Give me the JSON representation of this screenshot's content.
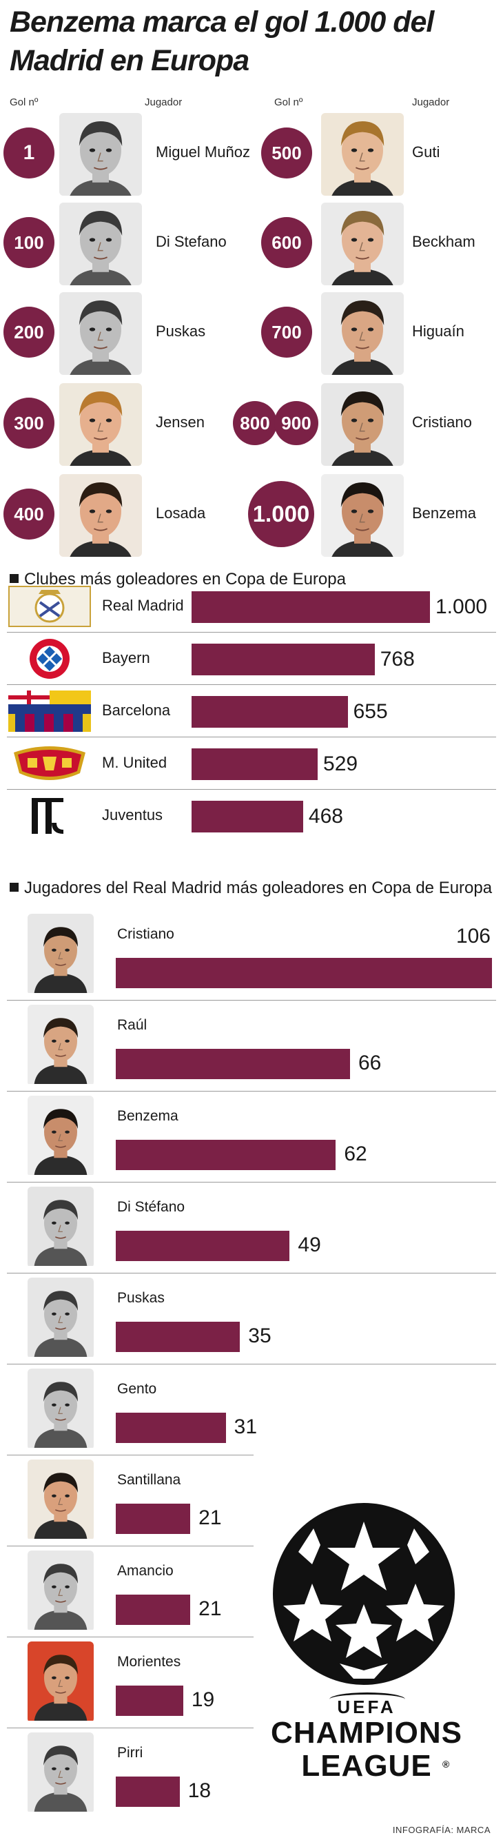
{
  "title": "Benzema marca el gol 1.000 del Madrid en Europa",
  "goals_header": {
    "gol_label": "Gol nº",
    "jugador_label": "Jugador"
  },
  "milestones_left": [
    {
      "goal": "1",
      "player": "Miguel Muñoz"
    },
    {
      "goal": "100",
      "player": "Di Stefano"
    },
    {
      "goal": "200",
      "player": "Puskas"
    },
    {
      "goal": "300",
      "player": "Jensen"
    },
    {
      "goal": "400",
      "player": "Losada"
    }
  ],
  "milestones_right": [
    {
      "goal": "500",
      "player": "Guti"
    },
    {
      "goal": "600",
      "player": "Beckham"
    },
    {
      "goal": "700",
      "player": "Higuaín"
    },
    {
      "goal": "800",
      "goal2": "900",
      "player": "Cristiano"
    },
    {
      "goal": "1.000",
      "player": "Benzema"
    }
  ],
  "accent_color": "#7b2146",
  "chart_data": [
    {
      "type": "bar",
      "title": "Clubes más goleadores en Copa de Europa",
      "categories": [
        "Real Madrid",
        "Bayern",
        "Barcelona",
        "M. United",
        "Juventus"
      ],
      "values": [
        1000,
        768,
        655,
        529,
        468
      ],
      "value_labels": [
        "1.000",
        "768",
        "655",
        "529",
        "468"
      ],
      "logo_icons": [
        "real-madrid-crest-icon",
        "bayern-crest-icon",
        "barcelona-crest-icon",
        "manchester-united-crest-icon",
        "juventus-logo-icon"
      ],
      "orientation": "horizontal",
      "xlim": [
        0,
        1000
      ]
    },
    {
      "type": "bar",
      "title": "Jugadores del Real Madrid más goleadores en Copa de Europa",
      "categories": [
        "Cristiano",
        "Raúl",
        "Benzema",
        "Di Stéfano",
        "Puskas",
        "Gento",
        "Santillana",
        "Amancio",
        "Morientes",
        "Pirri"
      ],
      "values": [
        106,
        66,
        62,
        49,
        35,
        31,
        21,
        21,
        19,
        18
      ],
      "orientation": "horizontal",
      "xlim": [
        0,
        106
      ]
    }
  ],
  "logo": {
    "line1": "UEFA",
    "line2": "CHAMPIONS",
    "line3": "LEAGUE",
    "mark": "®",
    "icon": "champions-league-starball-icon"
  },
  "credit": "INFOGRAFÍA: MARCA"
}
